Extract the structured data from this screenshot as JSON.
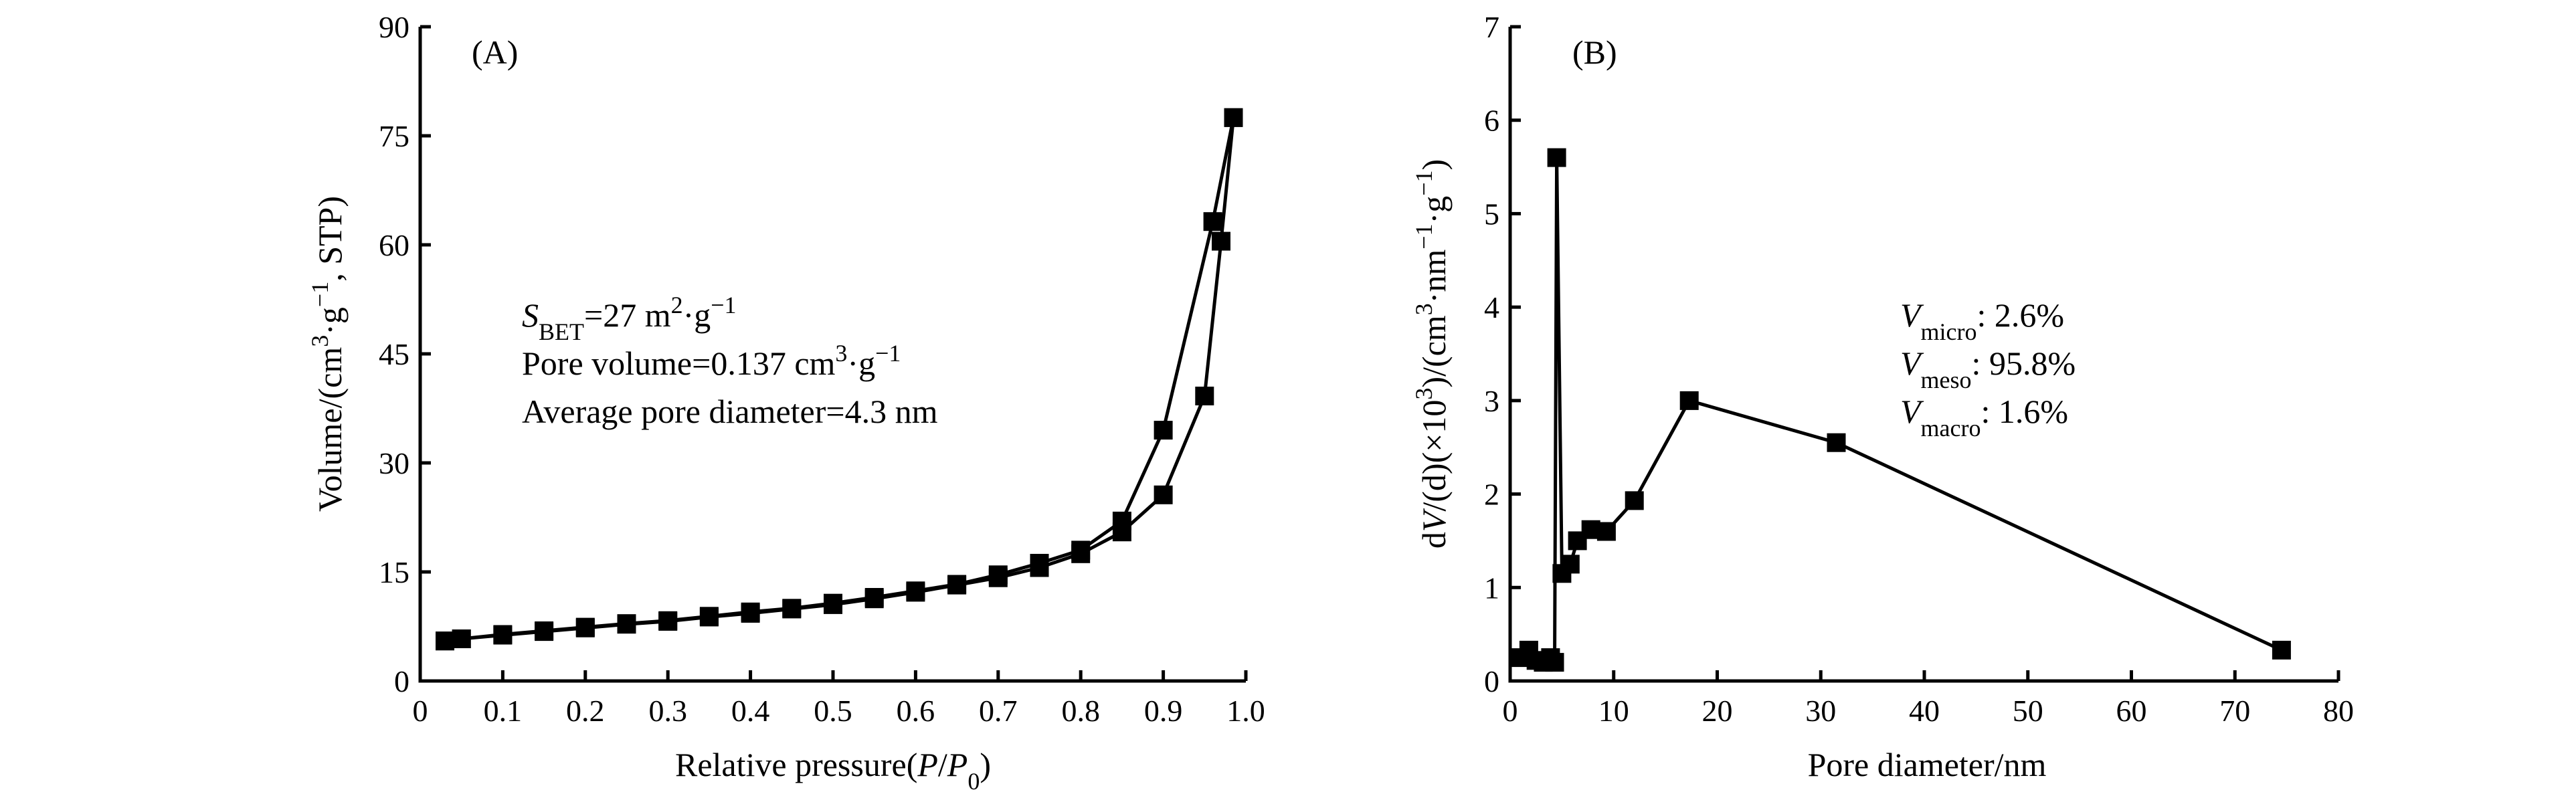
{
  "chart_data": [
    {
      "type": "line",
      "panel_label": "(A)",
      "xlabel": "Relative pressure(P/P0)",
      "ylabel": "Volume/(cm3·g−1, STP)",
      "xlim": [
        0,
        1.0
      ],
      "ylim": [
        0,
        90
      ],
      "x_ticks": [
        "0",
        "0.1",
        "0.2",
        "0.3",
        "0.4",
        "0.5",
        "0.6",
        "0.7",
        "0.8",
        "0.9",
        "1.0"
      ],
      "y_ticks": [
        "0",
        "15",
        "30",
        "45",
        "60",
        "75",
        "90"
      ],
      "annotations": [
        "SBET=27 m2·g−1",
        "Pore volume=0.137 cm3·g−1",
        "Average pore diameter=4.3 nm"
      ],
      "series": [
        {
          "x": [
            0.03,
            0.05,
            0.1,
            0.15,
            0.2,
            0.25,
            0.3,
            0.35,
            0.4,
            0.45,
            0.5,
            0.55,
            0.6,
            0.65,
            0.7,
            0.75,
            0.8,
            0.85,
            0.9,
            0.95,
            0.97,
            0.985
          ],
          "values": [
            5.5,
            5.8,
            6.3,
            6.8,
            7.3,
            7.8,
            8.2,
            8.8,
            9.3,
            9.9,
            10.5,
            11.3,
            12.2,
            13.2,
            14.2,
            15.6,
            17.5,
            20.5,
            25.6,
            39.2,
            60.5,
            77.5
          ]
        },
        {
          "x": [
            0.985,
            0.96,
            0.9,
            0.85,
            0.8,
            0.75,
            0.7,
            0.65,
            0.6,
            0.55,
            0.5,
            0.45,
            0.4,
            0.35,
            0.3,
            0.25,
            0.2,
            0.15,
            0.1,
            0.05,
            0.03
          ],
          "values": [
            77.5,
            63.2,
            34.5,
            22.0,
            18.0,
            16.2,
            14.6,
            13.3,
            12.4,
            11.5,
            10.7,
            10.0,
            9.5,
            8.9,
            8.3,
            7.9,
            7.4,
            6.9,
            6.4,
            5.8,
            5.5
          ]
        }
      ]
    },
    {
      "type": "line",
      "panel_label": "(B)",
      "xlabel": "Pore diameter/nm",
      "ylabel": "dV/(d)(×103)/(cm3·nm−1·g−1)",
      "xlim": [
        0,
        80
      ],
      "ylim": [
        0,
        7
      ],
      "x_ticks": [
        "0",
        "10",
        "20",
        "30",
        "40",
        "50",
        "60",
        "70",
        "80"
      ],
      "y_ticks": [
        "0",
        "1",
        "2",
        "3",
        "4",
        "5",
        "6",
        "7"
      ],
      "annotations": [
        "Vmicro: 2.6%",
        "Vmeso: 95.8%",
        "Vmacro: 1.6%"
      ],
      "series": [
        {
          "x": [
            1.0,
            1.8,
            2.5,
            3.2,
            3.9,
            4.3,
            4.5,
            5.0,
            5.8,
            6.5,
            7.8,
            9.3,
            12.0,
            17.3,
            31.5,
            74.5
          ],
          "values": [
            0.25,
            0.33,
            0.22,
            0.2,
            0.25,
            0.2,
            5.6,
            1.15,
            1.25,
            1.5,
            1.62,
            1.6,
            1.93,
            3.0,
            2.55,
            0.33
          ]
        }
      ]
    }
  ]
}
